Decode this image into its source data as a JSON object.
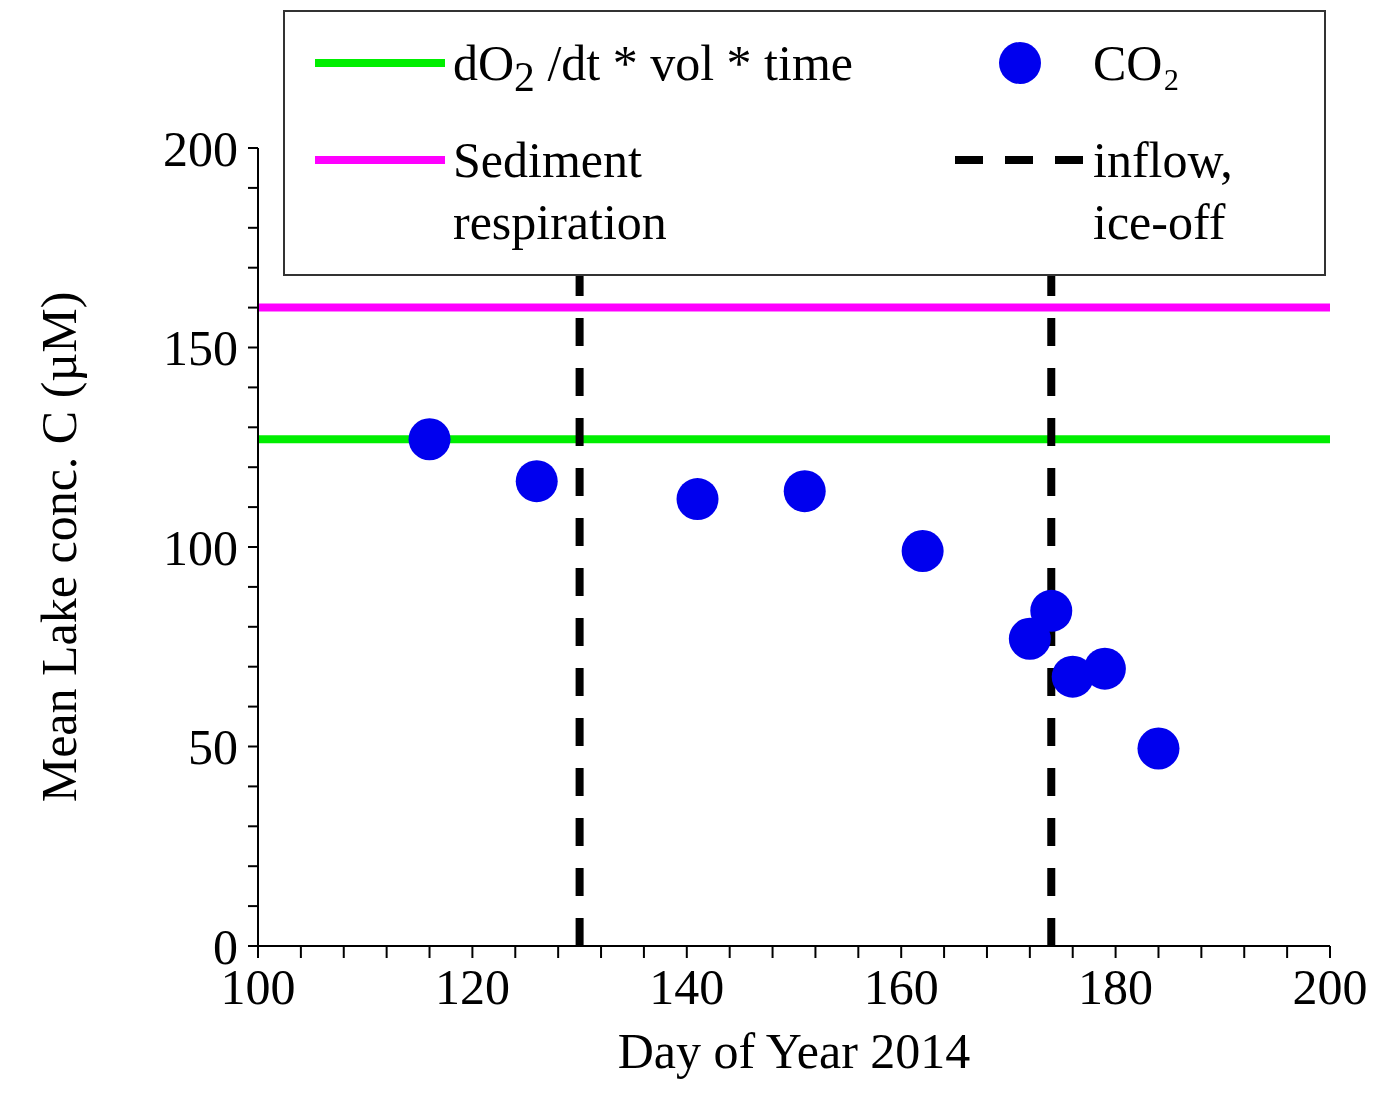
{
  "chart_data": {
    "type": "scatter",
    "xlabel": "Day of Year 2014",
    "ylabel": "Mean Lake conc. C (µM)",
    "series": [
      {
        "name": "CO₂",
        "color": "#0000ee",
        "x": [
          116,
          126,
          141,
          151,
          162,
          172,
          174,
          176,
          179,
          184
        ],
        "values": [
          127,
          116.5,
          112,
          114,
          99,
          77,
          84,
          67.5,
          69.5,
          49.5
        ]
      }
    ],
    "ref_lines": [
      {
        "axis": "y",
        "value": 127,
        "label": "dO$_{2}$ /dt * vol * time",
        "color": "#00ee00",
        "line_style": "solid"
      },
      {
        "axis": "y",
        "value": 160,
        "label": "Sediment respiration",
        "color": "#ff00ff",
        "line_style": "solid"
      },
      {
        "axis": "x",
        "value": 130,
        "label": "inflow, ice-off",
        "color": "#000000",
        "line_style": "dashed"
      },
      {
        "axis": "x",
        "value": 174,
        "color": "#000000",
        "line_style": "dashed"
      }
    ],
    "xlim": [
      100,
      200
    ],
    "xticks": [
      100,
      {
        "value": 104,
        "label": null
      },
      {
        "value": 108,
        "label": null
      },
      {
        "value": 112,
        "label": null
      },
      {
        "value": 116,
        "label": null
      },
      120,
      {
        "value": 124,
        "label": null
      },
      {
        "value": 128,
        "label": null
      },
      {
        "value": 132,
        "label": null
      },
      {
        "value": 136,
        "label": null
      },
      140,
      {
        "value": 144,
        "label": null
      },
      {
        "value": 148,
        "label": null
      },
      {
        "value": 152,
        "label": null
      },
      {
        "value": 156,
        "label": null
      },
      160,
      {
        "value": 164,
        "label": null
      },
      {
        "value": 168,
        "label": null
      },
      {
        "value": 172,
        "label": null
      },
      {
        "value": 176,
        "label": null
      },
      180,
      {
        "value": 184,
        "label": null
      },
      {
        "value": 188,
        "label": null
      },
      {
        "value": 192,
        "label": null
      },
      {
        "value": 196,
        "label": null
      },
      200
    ],
    "ylim": [
      0,
      200
    ],
    "yticks": [
      0,
      {
        "value": 10,
        "label": null
      },
      {
        "value": 20,
        "label": null
      },
      {
        "value": 30,
        "label": null
      },
      {
        "value": 40,
        "label": null
      },
      50,
      {
        "value": 60,
        "label": null
      },
      {
        "value": 70,
        "label": null
      },
      {
        "value": 80,
        "label": null
      },
      {
        "value": 90,
        "label": null
      },
      100,
      {
        "value": 110,
        "label": null
      },
      {
        "value": 120,
        "label": null
      },
      {
        "value": 130,
        "label": null
      },
      {
        "value": 140,
        "label": null
      },
      150,
      {
        "value": 160,
        "label": null
      },
      {
        "value": 170,
        "label": null
      },
      {
        "value": 180,
        "label": null
      },
      {
        "value": 190,
        "label": null
      },
      200
    ],
    "marker": "circle",
    "legend": "top",
    "grid": false
  }
}
